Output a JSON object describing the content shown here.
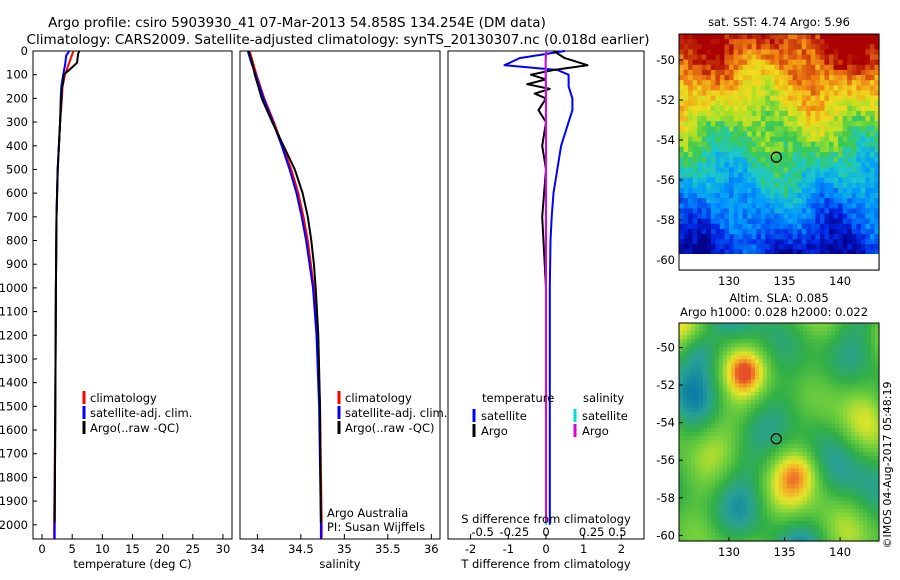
{
  "header": {
    "line1": "Argo profile: csiro 5903930_41 07-Mar-2013 54.858S 134.254E (DM data)",
    "line2": "Climatology: CARS2009. Satellite-adjusted climatology: synTS_20130307.nc (0.018d earlier)"
  },
  "chart_data": [
    {
      "type": "line",
      "id": "temperature",
      "xlabel": "temperature (deg C)",
      "ylabel": "",
      "xlim": [
        -1.5,
        31.5
      ],
      "ylim": [
        2060,
        0
      ],
      "xticks": [
        0,
        5,
        10,
        15,
        20,
        25,
        30
      ],
      "yticks": [
        0,
        100,
        200,
        300,
        400,
        500,
        600,
        700,
        800,
        900,
        1000,
        1100,
        1200,
        1300,
        1400,
        1500,
        1600,
        1700,
        1800,
        1900,
        2000
      ],
      "legend": [
        "climatology",
        "satellite-adj. clim.",
        "Argo(..raw -QC)"
      ],
      "series": [
        {
          "name": "climatology",
          "color": "#ff0000",
          "depth": [
            0,
            50,
            100,
            150,
            200,
            300,
            400,
            500,
            700,
            1000,
            1500,
            2000,
            2060
          ],
          "values": [
            5.2,
            4.5,
            3.8,
            3.4,
            3.3,
            3.0,
            2.8,
            2.6,
            2.4,
            2.3,
            2.2,
            2.0,
            2.0
          ]
        },
        {
          "name": "satellite-adj. clim.",
          "color": "#0000ff",
          "depth": [
            0,
            20,
            60,
            100,
            150,
            200,
            300,
            400,
            500,
            700,
            1000,
            1500,
            2000,
            2060
          ],
          "values": [
            4.5,
            4.0,
            3.8,
            3.5,
            3.2,
            3.1,
            3.0,
            2.8,
            2.6,
            2.4,
            2.3,
            2.2,
            2.1,
            2.1
          ]
        },
        {
          "name": "Argo(..raw -QC)",
          "color": "#000000",
          "depth": [
            0,
            10,
            30,
            50,
            80,
            100,
            130,
            160,
            200,
            250,
            300,
            400,
            500,
            700,
            1000,
            1500,
            1990
          ],
          "values": [
            6.2,
            6.0,
            5.9,
            5.8,
            4.5,
            3.6,
            3.5,
            3.3,
            3.2,
            3.1,
            3.0,
            2.8,
            2.6,
            2.4,
            2.3,
            2.2,
            2.1
          ]
        }
      ]
    },
    {
      "type": "line",
      "id": "salinity",
      "xlabel": "salinity",
      "xlim": [
        33.8,
        36.1
      ],
      "ylim": [
        2060,
        0
      ],
      "xticks": [
        34,
        34.5,
        35,
        35.5,
        36
      ],
      "legend": [
        "climatology",
        "satellite-adj. clim.",
        "Argo(..raw -QC)"
      ],
      "annotation": [
        "Argo Australia",
        "PI: Susan Wijffels"
      ],
      "series": [
        {
          "name": "climatology",
          "color": "#ff0000",
          "depth": [
            0,
            50,
            100,
            200,
            300,
            400,
            500,
            600,
            700,
            800,
            1000,
            1200,
            1500,
            2000,
            2060
          ],
          "values": [
            33.91,
            33.95,
            33.99,
            34.08,
            34.19,
            34.29,
            34.39,
            34.47,
            34.53,
            34.58,
            34.65,
            34.69,
            34.72,
            34.74,
            34.74
          ]
        },
        {
          "name": "satellite-adj. clim.",
          "color": "#0000ff",
          "depth": [
            0,
            50,
            100,
            200,
            300,
            400,
            500,
            600,
            700,
            800,
            1000,
            1200,
            1500,
            2000,
            2060
          ],
          "values": [
            33.89,
            33.93,
            33.98,
            34.07,
            34.18,
            34.28,
            34.37,
            34.45,
            34.51,
            34.56,
            34.64,
            34.68,
            34.71,
            34.73,
            34.73
          ]
        },
        {
          "name": "Argo(..raw -QC)",
          "color": "#000000",
          "depth": [
            0,
            50,
            100,
            150,
            200,
            300,
            400,
            500,
            600,
            700,
            800,
            900,
            1000,
            1200,
            1500,
            1990
          ],
          "values": [
            33.9,
            33.94,
            33.97,
            34.01,
            34.05,
            34.17,
            34.3,
            34.43,
            34.52,
            34.58,
            34.62,
            34.65,
            34.67,
            34.7,
            34.72,
            34.73
          ]
        }
      ]
    },
    {
      "type": "line",
      "id": "difference",
      "xlabel": "T difference from climatology",
      "xlabel_top": "S difference from climatology",
      "xlim": [
        -2.6,
        2.6
      ],
      "ylim": [
        2060,
        0
      ],
      "xticks": [
        -2,
        -1,
        0,
        1,
        2
      ],
      "xticks_top": [
        "-0.5",
        "-0.25",
        "0",
        "0.25",
        "0.5"
      ],
      "legend_groups": [
        {
          "title": "temperature",
          "items": [
            "satellite",
            "Argo"
          ]
        },
        {
          "title": "salinity",
          "items": [
            "satellite",
            "Argo"
          ]
        }
      ],
      "series": [
        {
          "name": "temperature satellite",
          "color": "#0000ff",
          "depth": [
            0,
            30,
            60,
            80,
            100,
            150,
            200,
            250,
            300,
            400,
            500,
            600,
            700,
            800,
            1000,
            1500,
            1900,
            2000
          ],
          "values": [
            0.5,
            -0.7,
            -1.1,
            0.3,
            0.6,
            0.6,
            0.7,
            0.7,
            0.6,
            0.4,
            0.3,
            0.2,
            0.15,
            0.12,
            0.1,
            0.1,
            0.1,
            0.1
          ]
        },
        {
          "name": "temperature Argo",
          "color": "#000000",
          "depth": [
            0,
            30,
            60,
            80,
            100,
            120,
            140,
            160,
            180,
            200,
            250,
            300,
            400,
            500,
            700,
            1000,
            1500,
            1900
          ],
          "values": [
            0.2,
            0.5,
            1.1,
            0.2,
            -0.4,
            0.0,
            -0.5,
            0.1,
            -0.3,
            0.0,
            -0.2,
            0.0,
            -0.1,
            0.0,
            -0.1,
            0.0,
            0.0,
            0.0
          ]
        },
        {
          "name": "salinity satellite",
          "color": "#00dddd",
          "depth": [
            0,
            50,
            100,
            200,
            300,
            400,
            500,
            700,
            1000,
            1300,
            1600,
            2000
          ],
          "values": [
            -0.01,
            -0.01,
            0.0,
            0.0,
            -0.005,
            0.005,
            0.0,
            -0.005,
            0.0,
            0.0,
            0.0,
            0.0
          ]
        },
        {
          "name": "salinity Argo",
          "color": "#dd00dd",
          "depth": [
            0,
            30,
            60,
            100,
            150,
            200,
            300,
            400,
            500,
            700,
            1000,
            1300,
            1600,
            1990
          ],
          "values": [
            0.005,
            -0.005,
            -0.01,
            -0.01,
            -0.005,
            0.0,
            0.0,
            0.0,
            0.0,
            0.0,
            0.0,
            0.0,
            0.0,
            0.0
          ]
        }
      ]
    },
    {
      "type": "heatmap",
      "id": "sst-map",
      "title": "sat. SST: 4.74  Argo: 5.96",
      "xlim": [
        125.5,
        143.5
      ],
      "ylim": [
        -60.5,
        -48.7
      ],
      "xticks": [
        130,
        135,
        140
      ],
      "yticks": [
        -50,
        -52,
        -54,
        -56,
        -58,
        -60
      ],
      "marker": {
        "lon": 134.254,
        "lat": -54.858
      }
    },
    {
      "type": "heatmap",
      "id": "sla-map",
      "title": "Altim. SLA: 0.085",
      "subtitle": "Argo h1000: 0.028  h2000: 0.022",
      "xlim": [
        125.5,
        143.5
      ],
      "ylim": [
        -60.3,
        -48.7
      ],
      "xticks": [
        130,
        135,
        140
      ],
      "yticks": [
        -50,
        -52,
        -54,
        -56,
        -58,
        -60
      ],
      "marker": {
        "lon": 134.254,
        "lat": -54.858
      }
    }
  ],
  "footer": {
    "credit": "©IMOS 04-Aug-2017 05:48:19"
  }
}
